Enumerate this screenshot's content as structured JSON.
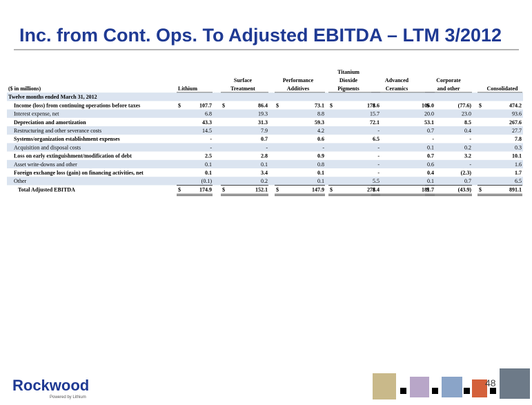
{
  "title": "Inc. from Cont. Ops. To Adjusted EBITDA – LTM 3/2012",
  "table": {
    "unit_label": "($ in millions)",
    "columns": [
      [
        "Lithium"
      ],
      [
        "Surface",
        "Treatment"
      ],
      [
        "Performance",
        "Additives"
      ],
      [
        "Titanium",
        "Dioxide",
        "Pigments"
      ],
      [
        "Advanced",
        "Ceramics"
      ],
      [
        "Corporate",
        "and other"
      ],
      [
        "Consolidated"
      ]
    ],
    "section": "Twelve months ended March 31, 2012",
    "currency": "$",
    "rows": [
      {
        "label": "Income (loss) from continuing operations before taxes",
        "values": [
          "107.7",
          "86.4",
          "73.1",
          "178.6",
          "106.0",
          "(77.6)",
          "474.2"
        ]
      },
      {
        "label": "Interest expense, net",
        "values": [
          "6.8",
          "19.3",
          "8.8",
          "15.7",
          "20.0",
          "23.0",
          "93.6"
        ]
      },
      {
        "label": "Depreciation and amortization",
        "values": [
          "43.3",
          "31.3",
          "59.3",
          "72.1",
          "53.1",
          "8.5",
          "267.6"
        ]
      },
      {
        "label": "Restructuring and other severance costs",
        "values": [
          "14.5",
          "7.9",
          "4.2",
          "-",
          "0.7",
          "0.4",
          "27.7"
        ]
      },
      {
        "label": "Systems/organization establishment expenses",
        "values": [
          "-",
          "0.7",
          "0.6",
          "6.5",
          "-",
          "-",
          "7.8"
        ]
      },
      {
        "label": "Acquisition and disposal costs",
        "values": [
          "-",
          "-",
          "-",
          "-",
          "0.1",
          "0.2",
          "0.3"
        ]
      },
      {
        "label": "Loss on early extinguishment/modification of debt",
        "values": [
          "2.5",
          "2.8",
          "0.9",
          "-",
          "0.7",
          "3.2",
          "10.1"
        ]
      },
      {
        "label": "Asset write-downs and other",
        "values": [
          "0.1",
          "0.1",
          "0.8",
          "-",
          "0.6",
          "-",
          "1.6"
        ]
      },
      {
        "label": "Foreign exchange loss (gain) on financing activities, net",
        "values": [
          "0.1",
          "3.4",
          "0.1",
          "-",
          "0.4",
          "(2.3)",
          "1.7"
        ]
      },
      {
        "label": "Other",
        "values": [
          "(0.1)",
          "0.2",
          "0.1",
          "5.5",
          "0.1",
          "0.7",
          "6.5"
        ]
      }
    ],
    "total": {
      "label": "Total Adjusted EBITDA",
      "values": [
        "174.9",
        "152.1",
        "147.9",
        "278.4",
        "181.7",
        "(43.9)",
        "891.1"
      ]
    }
  },
  "footer": {
    "logo": "Rockwood",
    "tagline": "Powered by Lithium",
    "page_number": "48"
  }
}
